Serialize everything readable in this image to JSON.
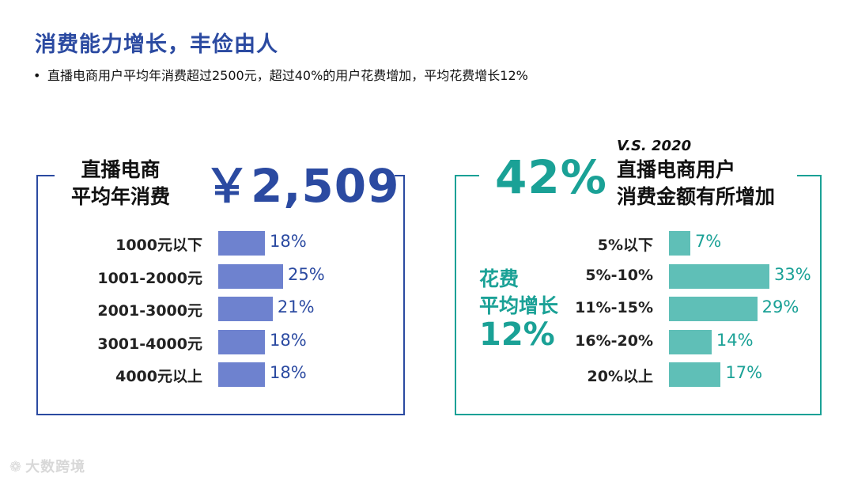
{
  "header": {
    "title": "消费能力增长，丰俭由人",
    "bullet": "直播电商用户平均年消费超过2500元，超过40%的用户花费增加，平均花费增长12%"
  },
  "left_panel": {
    "label_line1": "直播电商",
    "label_line2": "平均年消费",
    "headline": "￥2,509",
    "bar_color": "#6e82cf",
    "value_color": "#2b4aa1"
  },
  "right_panel": {
    "vs_text": "V.S. 2020",
    "headline": "42%",
    "label_line1": "直播电商用户",
    "label_line2": "消费金额有所增加",
    "side_label_line1": "花费",
    "side_label_line2": "平均增长",
    "side_value": "12%",
    "bar_color": "#5fbfb7",
    "value_color": "#1aa196"
  },
  "frame_colors": {
    "left": "#2b4aa1",
    "right": "#1aa196"
  },
  "chart_data": [
    {
      "type": "bar",
      "orientation": "horizontal",
      "categories": [
        "1000元以下",
        "1001-2000元",
        "2001-3000元",
        "3001-4000元",
        "4000元以上"
      ],
      "values": [
        18,
        25,
        21,
        18,
        18
      ],
      "value_labels": [
        "18%",
        "25%",
        "21%",
        "18%",
        "18%"
      ],
      "unit": "%"
    },
    {
      "type": "bar",
      "orientation": "horizontal",
      "categories": [
        "5%以下",
        "5%-10%",
        "11%-15%",
        "16%-20%",
        "20%以上"
      ],
      "values": [
        7,
        33,
        29,
        14,
        17
      ],
      "value_labels": [
        "7%",
        "33%",
        "29%",
        "14%",
        "17%"
      ],
      "unit": "%"
    }
  ],
  "watermark": {
    "logo": "❁",
    "text": "大数跨境"
  }
}
